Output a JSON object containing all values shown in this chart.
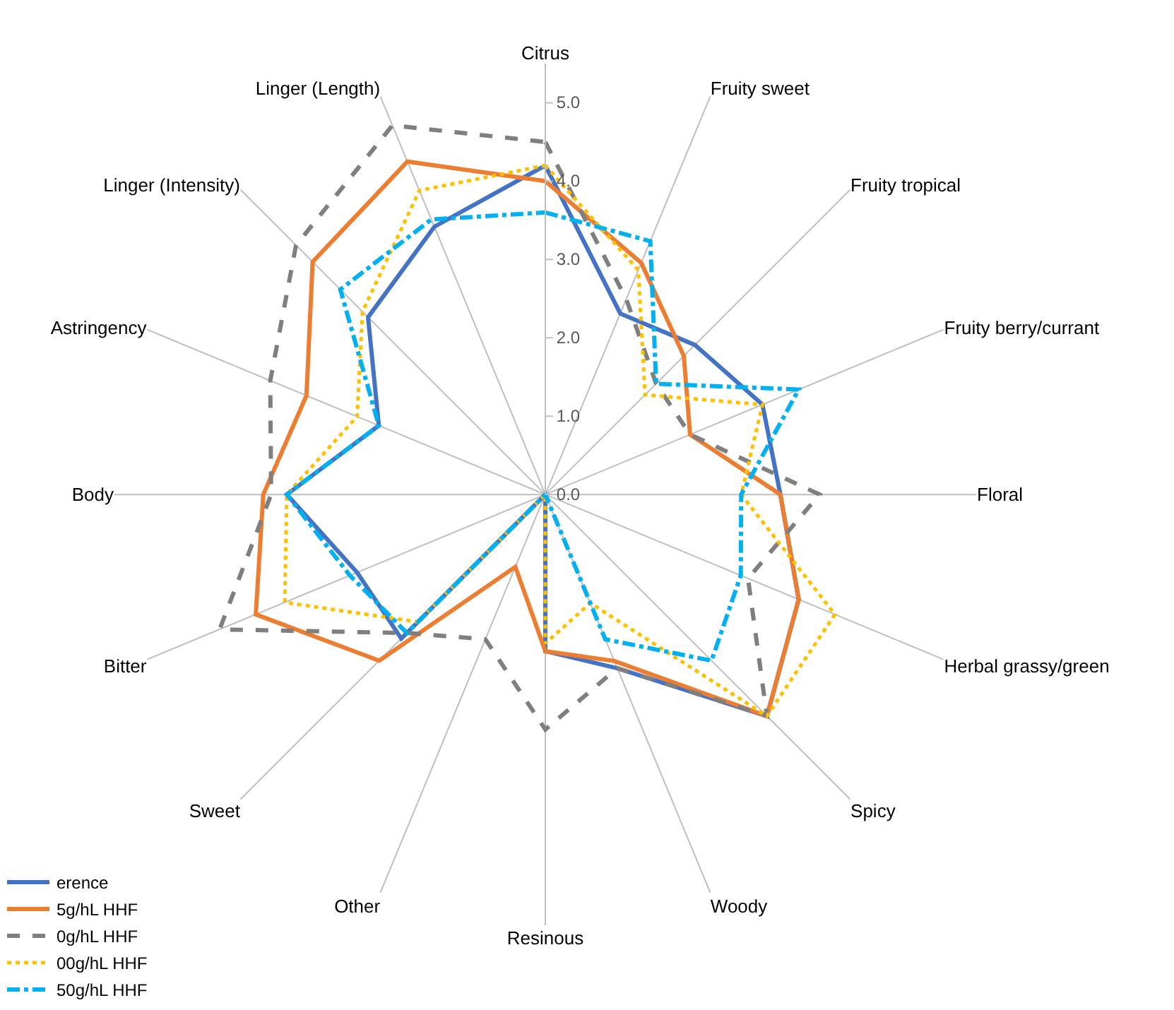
{
  "chart_data": {
    "type": "radar",
    "categories": [
      "Citrus",
      "Fruity sweet",
      "Fruity tropical",
      "Fruity berry/currant",
      "Floral",
      "Herbal grassy/green",
      "Spicy",
      "Woody",
      "Resinous",
      "Other",
      "Sweet",
      "Bitter",
      "Body",
      "Astringency",
      "Linger (Intensity)",
      "Linger (Length)"
    ],
    "series": [
      {
        "name": "erence",
        "color": "#4472c4",
        "line_style": "solid",
        "values": [
          4.2,
          2.5,
          2.7,
          3.0,
          3.0,
          3.5,
          4.0,
          2.4,
          2.0,
          0,
          2.6,
          2.6,
          3.3,
          2.3,
          3.2,
          3.7
        ]
      },
      {
        "name": "5g/hL HHF",
        "color": "#ed7d31",
        "line_style": "solid",
        "values": [
          4.0,
          3.2,
          2.5,
          2.0,
          3.0,
          3.5,
          4.0,
          2.3,
          2.0,
          1.0,
          3.0,
          4.0,
          3.6,
          3.3,
          4.2,
          4.6
        ]
      },
      {
        "name": "0g/hL HHF",
        "color": "#7f7f7f",
        "line_style": "dashed",
        "values": [
          4.5,
          2.7,
          2.0,
          2.0,
          3.5,
          2.8,
          4.0,
          2.4,
          3.0,
          2.0,
          2.5,
          4.5,
          3.5,
          3.8,
          4.5,
          5.1
        ]
      },
      {
        "name": "00g/hL HHF",
        "color": "#ffc000",
        "line_style": "dotted",
        "values": [
          4.2,
          3.1,
          1.8,
          3.0,
          2.5,
          4.0,
          4.0,
          1.5,
          1.9,
          0,
          2.3,
          3.6,
          3.3,
          2.6,
          3.3,
          4.2
        ]
      },
      {
        "name": "50g/hL HHF",
        "color": "#00b0f0",
        "line_style": "dashdot",
        "values": [
          3.6,
          3.5,
          2.0,
          3.5,
          2.5,
          2.7,
          3.0,
          2.0,
          0,
          0,
          2.5,
          2.7,
          3.3,
          2.3,
          3.7,
          3.8
        ]
      }
    ],
    "ylim": [
      0,
      5.5
    ],
    "yticks": [
      {
        "value": 0,
        "label": "0.0"
      },
      {
        "value": 1,
        "label": "1.0"
      },
      {
        "value": 2,
        "label": "2.0"
      },
      {
        "value": 3,
        "label": "3.0"
      },
      {
        "value": 4,
        "label": "4.0"
      },
      {
        "value": 5,
        "label": "5.0"
      }
    ],
    "grid": "x",
    "legend": "bottom left",
    "marker": "none"
  }
}
